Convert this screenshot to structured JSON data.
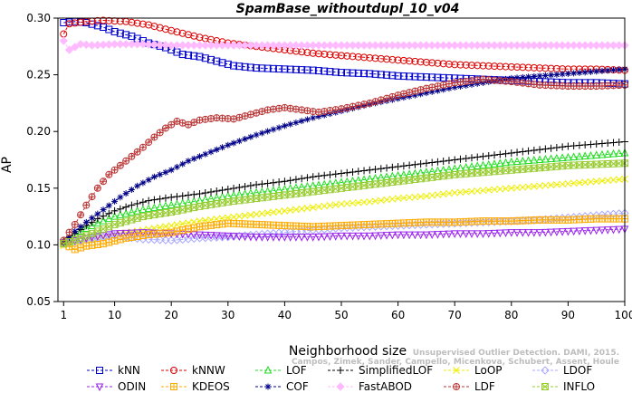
{
  "chart_data": {
    "type": "line",
    "title": "SpamBase_withoutdupl_10_v04",
    "xlabel": "Neighborhood size",
    "ylabel": "AP",
    "xlim": [
      0,
      100
    ],
    "ylim": [
      0.05,
      0.3
    ],
    "xticks": [
      1,
      10,
      20,
      30,
      40,
      50,
      60,
      70,
      80,
      90,
      100
    ],
    "yticks": [
      0.05,
      0.1,
      0.15,
      0.2,
      0.25,
      0.3
    ],
    "ytick_labels": [
      "0.05",
      "0.10",
      "0.15",
      "0.20",
      "0.25",
      "0.30"
    ],
    "grid": false,
    "legend_position": "bottom",
    "watermark": [
      "Campos, Zimek, Sander, Campello, Micenkova, Schubert, Assent, Houle",
      "Unsupervised Outlier Detection. DAMI, 2015."
    ],
    "series": [
      {
        "name": "kNN",
        "color": "#0000cc",
        "marker": "square",
        "points": [
          [
            1,
            0.296
          ],
          [
            3,
            0.297
          ],
          [
            5,
            0.296
          ],
          [
            8,
            0.292
          ],
          [
            10,
            0.288
          ],
          [
            13,
            0.284
          ],
          [
            16,
            0.278
          ],
          [
            19,
            0.274
          ],
          [
            22,
            0.268
          ],
          [
            25,
            0.266
          ],
          [
            28,
            0.262
          ],
          [
            31,
            0.258
          ],
          [
            35,
            0.256
          ],
          [
            40,
            0.255
          ],
          [
            45,
            0.254
          ],
          [
            50,
            0.252
          ],
          [
            55,
            0.251
          ],
          [
            60,
            0.249
          ],
          [
            65,
            0.248
          ],
          [
            70,
            0.247
          ],
          [
            75,
            0.246
          ],
          [
            80,
            0.245
          ],
          [
            85,
            0.244
          ],
          [
            90,
            0.243
          ],
          [
            95,
            0.243
          ],
          [
            100,
            0.242
          ]
        ]
      },
      {
        "name": "kNNW",
        "color": "#dd0000",
        "marker": "circle",
        "points": [
          [
            1,
            0.286
          ],
          [
            2,
            0.295
          ],
          [
            5,
            0.297
          ],
          [
            8,
            0.298
          ],
          [
            12,
            0.297
          ],
          [
            16,
            0.294
          ],
          [
            20,
            0.289
          ],
          [
            25,
            0.283
          ],
          [
            30,
            0.278
          ],
          [
            35,
            0.275
          ],
          [
            40,
            0.272
          ],
          [
            45,
            0.269
          ],
          [
            50,
            0.267
          ],
          [
            55,
            0.265
          ],
          [
            60,
            0.263
          ],
          [
            65,
            0.261
          ],
          [
            70,
            0.259
          ],
          [
            75,
            0.258
          ],
          [
            80,
            0.257
          ],
          [
            85,
            0.256
          ],
          [
            90,
            0.255
          ],
          [
            95,
            0.255
          ],
          [
            100,
            0.254
          ]
        ]
      },
      {
        "name": "LOF",
        "color": "#22dd22",
        "marker": "triangle-up",
        "points": [
          [
            1,
            0.103
          ],
          [
            4,
            0.112
          ],
          [
            7,
            0.119
          ],
          [
            10,
            0.125
          ],
          [
            15,
            0.131
          ],
          [
            20,
            0.135
          ],
          [
            25,
            0.139
          ],
          [
            30,
            0.143
          ],
          [
            35,
            0.146
          ],
          [
            40,
            0.149
          ],
          [
            45,
            0.152
          ],
          [
            50,
            0.155
          ],
          [
            55,
            0.158
          ],
          [
            60,
            0.161
          ],
          [
            65,
            0.164
          ],
          [
            70,
            0.167
          ],
          [
            75,
            0.17
          ],
          [
            80,
            0.173
          ],
          [
            85,
            0.175
          ],
          [
            90,
            0.177
          ],
          [
            95,
            0.179
          ],
          [
            100,
            0.181
          ]
        ]
      },
      {
        "name": "SimplifiedLOF",
        "color": "#000000",
        "marker": "plus",
        "points": [
          [
            1,
            0.103
          ],
          [
            3,
            0.11
          ],
          [
            5,
            0.117
          ],
          [
            7,
            0.123
          ],
          [
            10,
            0.13
          ],
          [
            13,
            0.135
          ],
          [
            16,
            0.139
          ],
          [
            20,
            0.142
          ],
          [
            25,
            0.145
          ],
          [
            30,
            0.149
          ],
          [
            35,
            0.153
          ],
          [
            40,
            0.156
          ],
          [
            45,
            0.16
          ],
          [
            50,
            0.163
          ],
          [
            55,
            0.166
          ],
          [
            60,
            0.169
          ],
          [
            65,
            0.172
          ],
          [
            70,
            0.175
          ],
          [
            75,
            0.178
          ],
          [
            80,
            0.181
          ],
          [
            85,
            0.184
          ],
          [
            90,
            0.187
          ],
          [
            95,
            0.189
          ],
          [
            100,
            0.191
          ]
        ]
      },
      {
        "name": "LoOP",
        "color": "#eeee00",
        "marker": "x",
        "points": [
          [
            1,
            0.099
          ],
          [
            5,
            0.104
          ],
          [
            10,
            0.109
          ],
          [
            15,
            0.113
          ],
          [
            20,
            0.117
          ],
          [
            25,
            0.121
          ],
          [
            30,
            0.124
          ],
          [
            35,
            0.127
          ],
          [
            40,
            0.13
          ],
          [
            45,
            0.133
          ],
          [
            50,
            0.136
          ],
          [
            55,
            0.138
          ],
          [
            60,
            0.141
          ],
          [
            65,
            0.143
          ],
          [
            70,
            0.146
          ],
          [
            75,
            0.148
          ],
          [
            80,
            0.15
          ],
          [
            85,
            0.152
          ],
          [
            90,
            0.154
          ],
          [
            95,
            0.156
          ],
          [
            100,
            0.158
          ]
        ]
      },
      {
        "name": "LDOF",
        "color": "#aaaaff",
        "marker": "diamond",
        "points": [
          [
            1,
            0.101
          ],
          [
            5,
            0.105
          ],
          [
            10,
            0.108
          ],
          [
            15,
            0.105
          ],
          [
            20,
            0.104
          ],
          [
            25,
            0.106
          ],
          [
            30,
            0.107
          ],
          [
            35,
            0.109
          ],
          [
            40,
            0.111
          ],
          [
            45,
            0.113
          ],
          [
            50,
            0.115
          ],
          [
            55,
            0.116
          ],
          [
            60,
            0.117
          ],
          [
            65,
            0.118
          ],
          [
            70,
            0.119
          ],
          [
            75,
            0.12
          ],
          [
            80,
            0.121
          ],
          [
            85,
            0.122
          ],
          [
            90,
            0.124
          ],
          [
            95,
            0.126
          ],
          [
            100,
            0.128
          ]
        ]
      },
      {
        "name": "ODIN",
        "color": "#9922ee",
        "marker": "triangle-down",
        "points": [
          [
            1,
            0.102
          ],
          [
            5,
            0.106
          ],
          [
            10,
            0.11
          ],
          [
            15,
            0.111
          ],
          [
            20,
            0.11
          ],
          [
            25,
            0.109
          ],
          [
            30,
            0.108
          ],
          [
            35,
            0.107
          ],
          [
            40,
            0.107
          ],
          [
            45,
            0.107
          ],
          [
            50,
            0.108
          ],
          [
            55,
            0.108
          ],
          [
            60,
            0.109
          ],
          [
            65,
            0.109
          ],
          [
            70,
            0.11
          ],
          [
            75,
            0.11
          ],
          [
            80,
            0.111
          ],
          [
            85,
            0.111
          ],
          [
            90,
            0.112
          ],
          [
            95,
            0.113
          ],
          [
            100,
            0.114
          ]
        ]
      },
      {
        "name": "KDEOS",
        "color": "#ffaa00",
        "marker": "square-cross",
        "points": [
          [
            1,
            0.101
          ],
          [
            3,
            0.096
          ],
          [
            5,
            0.099
          ],
          [
            8,
            0.101
          ],
          [
            12,
            0.106
          ],
          [
            16,
            0.109
          ],
          [
            20,
            0.111
          ],
          [
            25,
            0.116
          ],
          [
            30,
            0.119
          ],
          [
            35,
            0.118
          ],
          [
            40,
            0.117
          ],
          [
            45,
            0.116
          ],
          [
            50,
            0.117
          ],
          [
            55,
            0.118
          ],
          [
            60,
            0.119
          ],
          [
            65,
            0.12
          ],
          [
            70,
            0.12
          ],
          [
            75,
            0.121
          ],
          [
            80,
            0.121
          ],
          [
            85,
            0.122
          ],
          [
            90,
            0.122
          ],
          [
            95,
            0.123
          ],
          [
            100,
            0.123
          ]
        ]
      },
      {
        "name": "COF",
        "color": "#000088",
        "marker": "asterisk",
        "points": [
          [
            1,
            0.102
          ],
          [
            3,
            0.112
          ],
          [
            5,
            0.12
          ],
          [
            8,
            0.131
          ],
          [
            11,
            0.142
          ],
          [
            14,
            0.152
          ],
          [
            17,
            0.16
          ],
          [
            20,
            0.166
          ],
          [
            23,
            0.174
          ],
          [
            26,
            0.18
          ],
          [
            30,
            0.188
          ],
          [
            35,
            0.197
          ],
          [
            40,
            0.205
          ],
          [
            45,
            0.212
          ],
          [
            50,
            0.218
          ],
          [
            55,
            0.224
          ],
          [
            60,
            0.229
          ],
          [
            65,
            0.234
          ],
          [
            70,
            0.239
          ],
          [
            75,
            0.243
          ],
          [
            80,
            0.247
          ],
          [
            85,
            0.249
          ],
          [
            90,
            0.251
          ],
          [
            95,
            0.253
          ],
          [
            100,
            0.255
          ]
        ]
      },
      {
        "name": "FastABOD",
        "color": "#ffbbff",
        "marker": "diamond-filled",
        "points": [
          [
            1,
            0.28
          ],
          [
            2,
            0.272
          ],
          [
            4,
            0.277
          ],
          [
            6,
            0.276
          ],
          [
            10,
            0.277
          ],
          [
            15,
            0.277
          ],
          [
            20,
            0.276
          ],
          [
            25,
            0.276
          ],
          [
            30,
            0.276
          ],
          [
            35,
            0.276
          ],
          [
            40,
            0.276
          ],
          [
            50,
            0.276
          ],
          [
            60,
            0.276
          ],
          [
            70,
            0.276
          ],
          [
            80,
            0.276
          ],
          [
            90,
            0.276
          ],
          [
            100,
            0.276
          ]
        ]
      },
      {
        "name": "LDF",
        "color": "#bb3333",
        "marker": "circle-plus",
        "points": [
          [
            1,
            0.104
          ],
          [
            3,
            0.118
          ],
          [
            5,
            0.135
          ],
          [
            7,
            0.15
          ],
          [
            9,
            0.162
          ],
          [
            11,
            0.17
          ],
          [
            13,
            0.178
          ],
          [
            15,
            0.186
          ],
          [
            17,
            0.195
          ],
          [
            19,
            0.203
          ],
          [
            21,
            0.209
          ],
          [
            23,
            0.206
          ],
          [
            25,
            0.21
          ],
          [
            28,
            0.212
          ],
          [
            31,
            0.211
          ],
          [
            34,
            0.215
          ],
          [
            37,
            0.219
          ],
          [
            40,
            0.221
          ],
          [
            43,
            0.219
          ],
          [
            46,
            0.217
          ],
          [
            50,
            0.22
          ],
          [
            55,
            0.225
          ],
          [
            60,
            0.232
          ],
          [
            65,
            0.238
          ],
          [
            70,
            0.243
          ],
          [
            75,
            0.246
          ],
          [
            80,
            0.244
          ],
          [
            85,
            0.241
          ],
          [
            90,
            0.24
          ],
          [
            95,
            0.24
          ],
          [
            100,
            0.241
          ]
        ]
      },
      {
        "name": "INFLO",
        "color": "#99cc33",
        "marker": "hourglass",
        "points": [
          [
            1,
            0.101
          ],
          [
            4,
            0.106
          ],
          [
            7,
            0.112
          ],
          [
            10,
            0.118
          ],
          [
            15,
            0.125
          ],
          [
            20,
            0.129
          ],
          [
            25,
            0.134
          ],
          [
            30,
            0.138
          ],
          [
            35,
            0.141
          ],
          [
            40,
            0.144
          ],
          [
            45,
            0.147
          ],
          [
            50,
            0.15
          ],
          [
            55,
            0.153
          ],
          [
            60,
            0.156
          ],
          [
            65,
            0.159
          ],
          [
            70,
            0.162
          ],
          [
            75,
            0.164
          ],
          [
            80,
            0.166
          ],
          [
            85,
            0.168
          ],
          [
            90,
            0.17
          ],
          [
            95,
            0.171
          ],
          [
            100,
            0.172
          ]
        ]
      }
    ]
  }
}
